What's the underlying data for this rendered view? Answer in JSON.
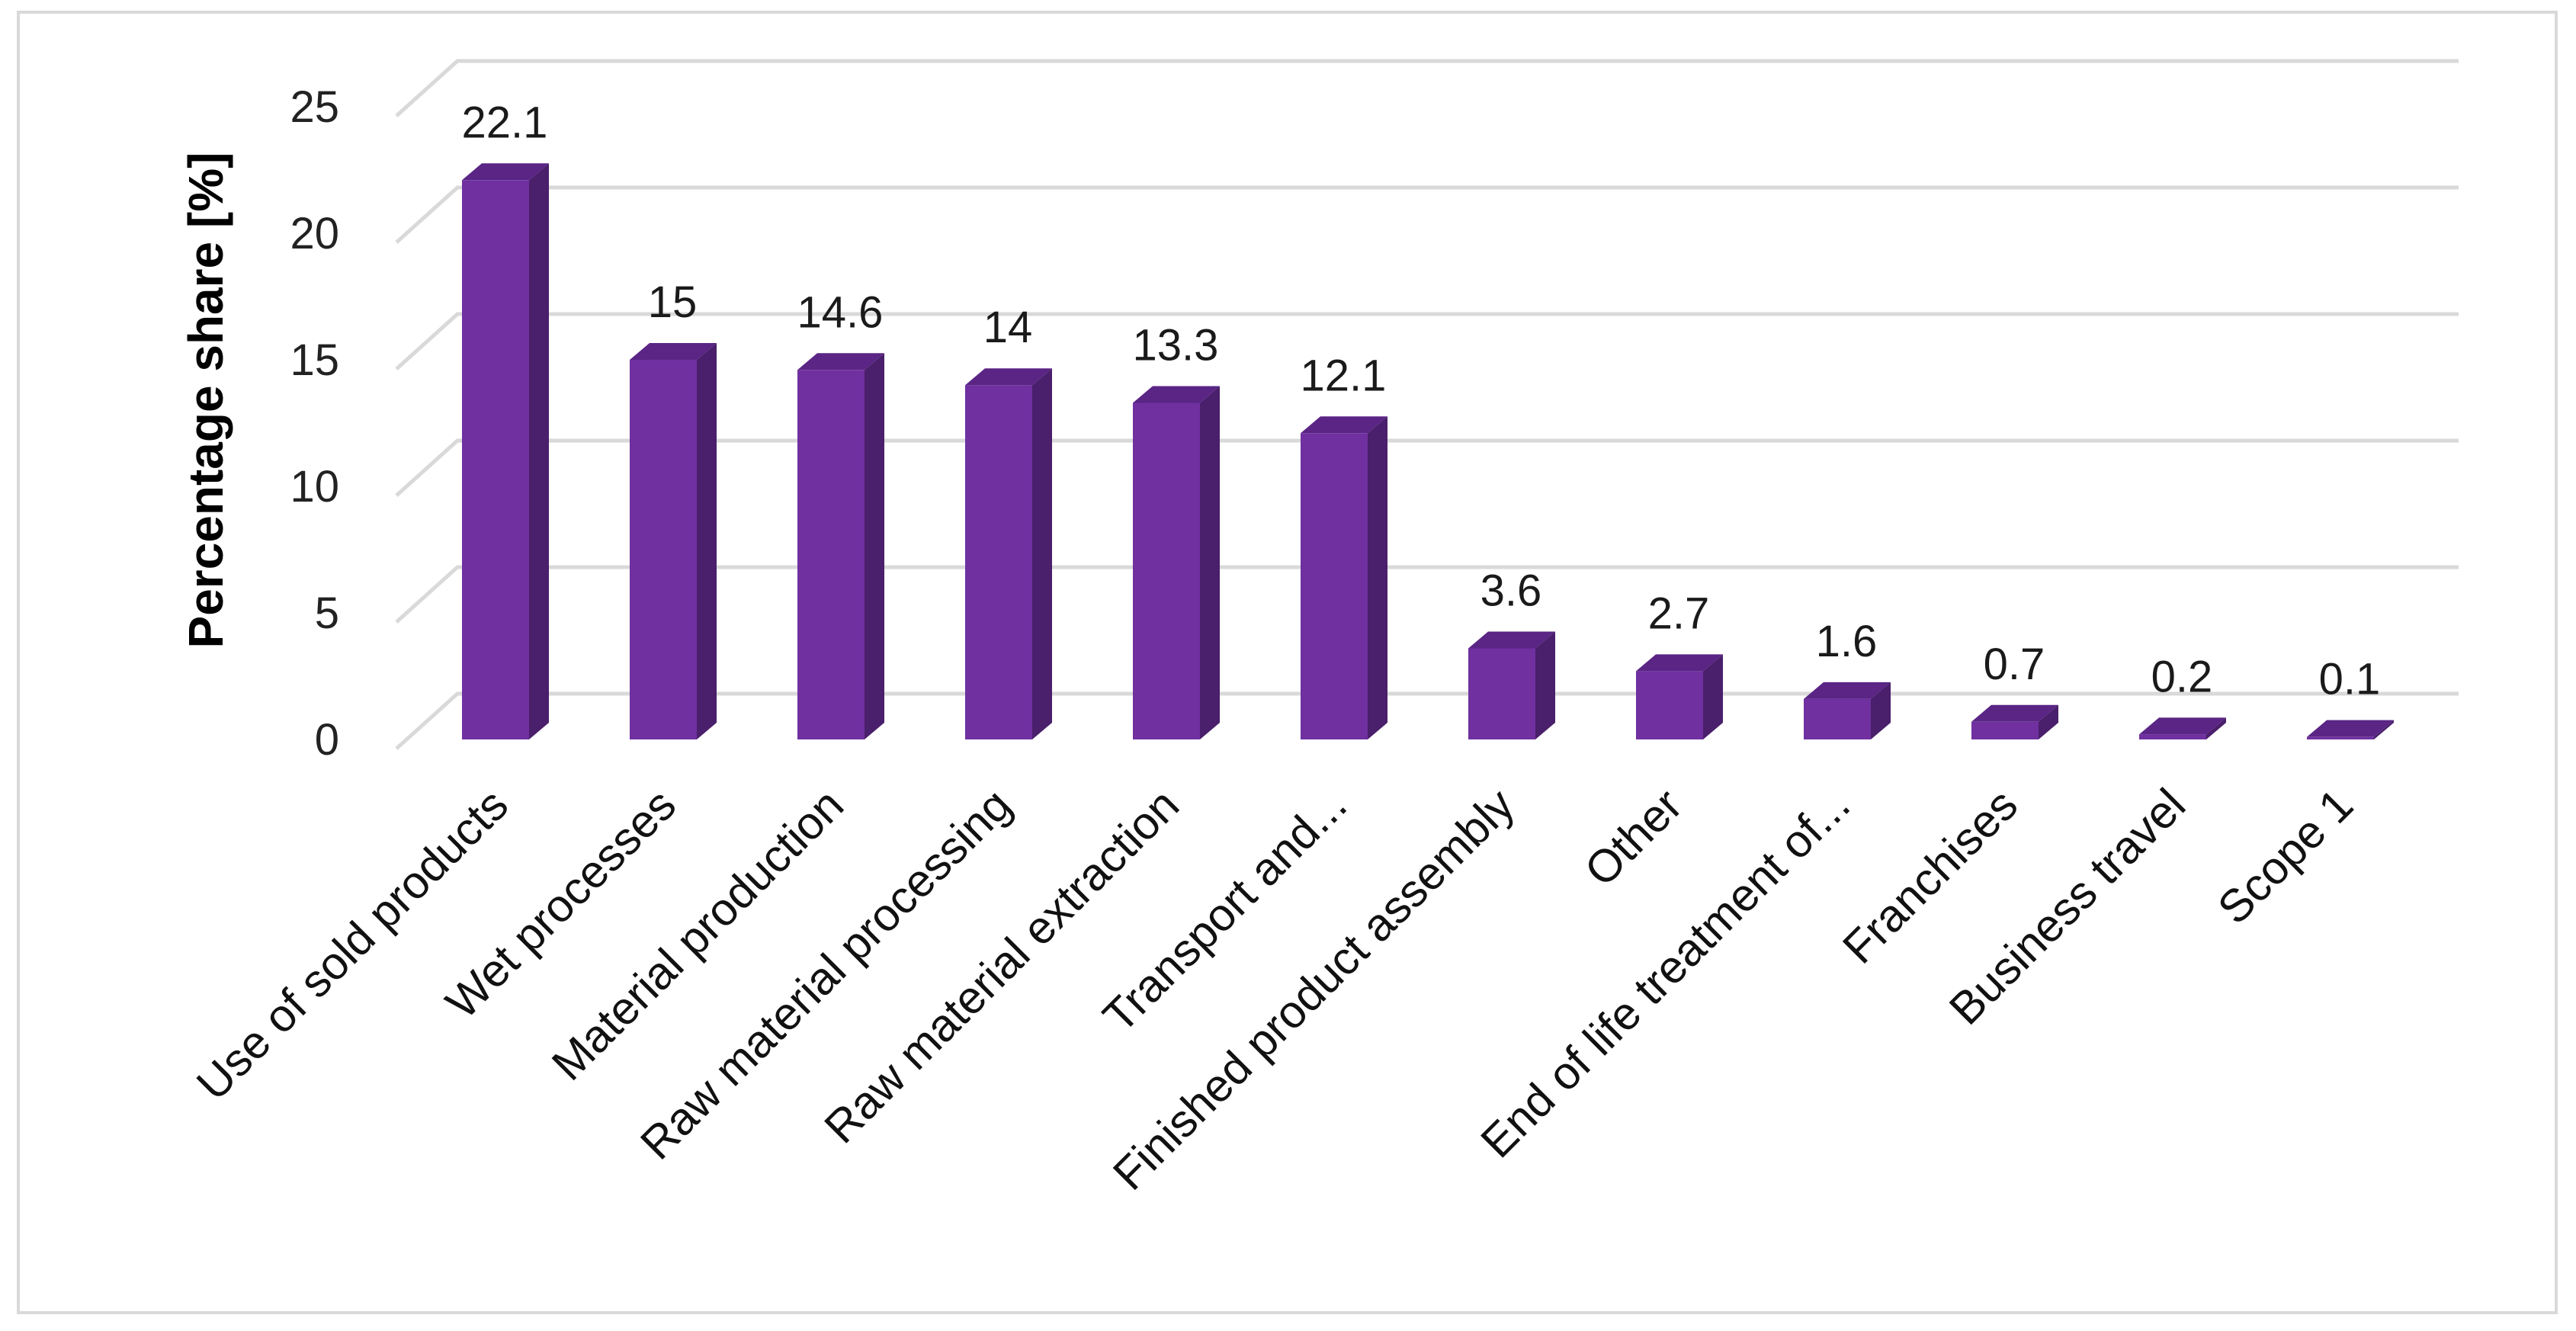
{
  "chart_data": {
    "type": "bar",
    "style": "3d-column",
    "title": "",
    "xlabel": "",
    "ylabel": "Percentage share [%]",
    "ylim": [
      0,
      25
    ],
    "yticks": [
      0,
      5,
      10,
      15,
      20,
      25
    ],
    "grid": true,
    "legend": "none",
    "categories": [
      "Use of sold products",
      "Wet processes",
      "Material production",
      "Raw material processing",
      "Raw material extraction",
      "Transport and...",
      "Finished product assembly",
      "Other",
      "End of life treatment of...",
      "Franchises",
      "Business travel",
      "Scope 1"
    ],
    "values": [
      22.1,
      15,
      14.6,
      14,
      13.3,
      12.1,
      3.6,
      2.7,
      1.6,
      0.7,
      0.2,
      0.1
    ],
    "data_labels": [
      "22.1",
      "15",
      "14.6",
      "14",
      "13.3",
      "12.1",
      "3.6",
      "2.7",
      "1.6",
      "0.7",
      "0.2",
      "0.1"
    ],
    "colors": {
      "bar_front": "#7030a0",
      "bar_side": "#4a1f6b",
      "bar_top": "#5a2585",
      "grid": "#d9d9d9"
    }
  }
}
